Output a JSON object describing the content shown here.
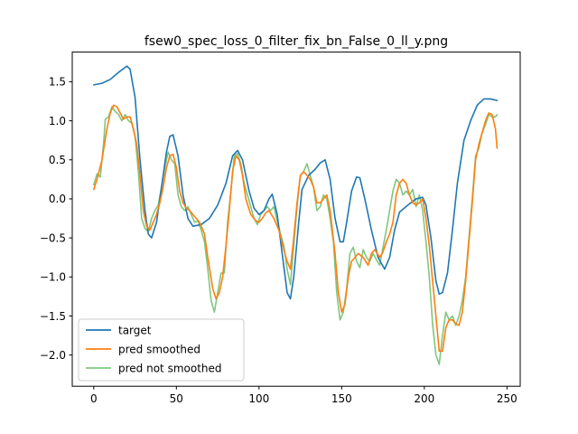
{
  "chart_data": {
    "type": "line",
    "title": "fsew0_spec_loss_0_filter_fix_bn_False_0_ll_y.png",
    "xlabel": "",
    "ylabel": "",
    "xlim": [
      -13,
      258
    ],
    "ylim": [
      -2.4,
      1.88
    ],
    "x_ticks": [
      0,
      50,
      100,
      150,
      200,
      250
    ],
    "y_ticks": [
      -2.0,
      -1.5,
      -1.0,
      -0.5,
      0.0,
      0.5,
      1.0,
      1.5
    ],
    "x_tick_labels": [
      "0",
      "50",
      "100",
      "150",
      "200",
      "250"
    ],
    "y_tick_labels": [
      "−2.0",
      "−1.5",
      "−1.0",
      "−0.5",
      "0.0",
      "0.5",
      "1.0",
      "1.5"
    ],
    "grid": false,
    "legend_position": "lower-left",
    "series": [
      {
        "name": "target",
        "color": "#1f77b4",
        "points": [
          [
            0,
            1.46
          ],
          [
            5,
            1.48
          ],
          [
            10,
            1.53
          ],
          [
            15,
            1.62
          ],
          [
            20,
            1.7
          ],
          [
            22,
            1.66
          ],
          [
            25,
            1.3
          ],
          [
            28,
            0.5
          ],
          [
            31,
            -0.15
          ],
          [
            33,
            -0.45
          ],
          [
            35,
            -0.5
          ],
          [
            38,
            -0.3
          ],
          [
            41,
            0.15
          ],
          [
            44,
            0.6
          ],
          [
            46,
            0.8
          ],
          [
            48,
            0.82
          ],
          [
            51,
            0.55
          ],
          [
            54,
            0.05
          ],
          [
            57,
            -0.25
          ],
          [
            60,
            -0.35
          ],
          [
            65,
            -0.33
          ],
          [
            70,
            -0.25
          ],
          [
            75,
            -0.08
          ],
          [
            80,
            0.2
          ],
          [
            84,
            0.55
          ],
          [
            87,
            0.62
          ],
          [
            90,
            0.5
          ],
          [
            94,
            0.1
          ],
          [
            97,
            -0.12
          ],
          [
            100,
            -0.2
          ],
          [
            103,
            -0.15
          ],
          [
            106,
            0.0
          ],
          [
            108,
            0.06
          ],
          [
            111,
            -0.2
          ],
          [
            114,
            -0.7
          ],
          [
            117,
            -1.2
          ],
          [
            119,
            -1.28
          ],
          [
            121,
            -1.0
          ],
          [
            124,
            -0.3
          ],
          [
            126,
            0.12
          ],
          [
            130,
            0.3
          ],
          [
            134,
            0.38
          ],
          [
            137,
            0.46
          ],
          [
            140,
            0.5
          ],
          [
            143,
            0.25
          ],
          [
            146,
            -0.25
          ],
          [
            149,
            -0.55
          ],
          [
            151,
            -0.55
          ],
          [
            153,
            -0.3
          ],
          [
            156,
            0.1
          ],
          [
            159,
            0.28
          ],
          [
            161,
            0.27
          ],
          [
            164,
            0.0
          ],
          [
            168,
            -0.4
          ],
          [
            172,
            -0.75
          ],
          [
            176,
            -0.9
          ],
          [
            179,
            -0.75
          ],
          [
            182,
            -0.4
          ],
          [
            185,
            -0.17
          ],
          [
            190,
            -0.08
          ],
          [
            195,
            0.0
          ],
          [
            199,
            0.02
          ],
          [
            201,
            -0.08
          ],
          [
            204,
            -0.5
          ],
          [
            207,
            -1.05
          ],
          [
            209,
            -1.22
          ],
          [
            211,
            -1.2
          ],
          [
            214,
            -0.95
          ],
          [
            217,
            -0.4
          ],
          [
            220,
            0.2
          ],
          [
            224,
            0.75
          ],
          [
            228,
            1.0
          ],
          [
            232,
            1.2
          ],
          [
            236,
            1.28
          ],
          [
            240,
            1.28
          ],
          [
            244,
            1.26
          ]
        ]
      },
      {
        "name": "pred smoothed",
        "color": "#ff7f0e",
        "points": [
          [
            0,
            0.12
          ],
          [
            2,
            0.25
          ],
          [
            5,
            0.5
          ],
          [
            8,
            0.9
          ],
          [
            10,
            1.1
          ],
          [
            12,
            1.2
          ],
          [
            14,
            1.18
          ],
          [
            16,
            1.1
          ],
          [
            18,
            1.02
          ],
          [
            20,
            1.05
          ],
          [
            22,
            1.05
          ],
          [
            24,
            0.9
          ],
          [
            26,
            0.7
          ],
          [
            28,
            0.3
          ],
          [
            30,
            -0.15
          ],
          [
            32,
            -0.35
          ],
          [
            34,
            -0.4
          ],
          [
            36,
            -0.3
          ],
          [
            38,
            -0.2
          ],
          [
            40,
            -0.05
          ],
          [
            42,
            0.15
          ],
          [
            44,
            0.4
          ],
          [
            46,
            0.55
          ],
          [
            48,
            0.57
          ],
          [
            50,
            0.4
          ],
          [
            52,
            0.1
          ],
          [
            54,
            -0.05
          ],
          [
            56,
            -0.12
          ],
          [
            58,
            -0.15
          ],
          [
            60,
            -0.2
          ],
          [
            62,
            -0.25
          ],
          [
            64,
            -0.3
          ],
          [
            67,
            -0.45
          ],
          [
            69,
            -0.75
          ],
          [
            72,
            -1.15
          ],
          [
            74,
            -1.28
          ],
          [
            76,
            -1.2
          ],
          [
            78,
            -1.0
          ],
          [
            80,
            -0.6
          ],
          [
            82,
            -0.15
          ],
          [
            84,
            0.35
          ],
          [
            86,
            0.55
          ],
          [
            88,
            0.5
          ],
          [
            90,
            0.3
          ],
          [
            92,
            0.0
          ],
          [
            95,
            -0.2
          ],
          [
            98,
            -0.28
          ],
          [
            100,
            -0.3
          ],
          [
            102,
            -0.25
          ],
          [
            104,
            -0.18
          ],
          [
            106,
            -0.15
          ],
          [
            109,
            -0.25
          ],
          [
            112,
            -0.4
          ],
          [
            115,
            -0.65
          ],
          [
            117,
            -0.8
          ],
          [
            119,
            -0.9
          ],
          [
            121,
            -0.5
          ],
          [
            123,
            -0.05
          ],
          [
            125,
            0.3
          ],
          [
            127,
            0.35
          ],
          [
            129,
            0.3
          ],
          [
            131,
            0.25
          ],
          [
            133,
            0.15
          ],
          [
            135,
            -0.05
          ],
          [
            137,
            -0.05
          ],
          [
            139,
            0.0
          ],
          [
            141,
            0.05
          ],
          [
            143,
            -0.15
          ],
          [
            146,
            -0.7
          ],
          [
            148,
            -1.2
          ],
          [
            150,
            -1.45
          ],
          [
            152,
            -1.35
          ],
          [
            154,
            -1.0
          ],
          [
            156,
            -0.8
          ],
          [
            158,
            -0.75
          ],
          [
            160,
            -0.7
          ],
          [
            163,
            -0.75
          ],
          [
            166,
            -0.85
          ],
          [
            168,
            -0.7
          ],
          [
            170,
            -0.65
          ],
          [
            173,
            -0.75
          ],
          [
            175,
            -0.68
          ],
          [
            177,
            -0.55
          ],
          [
            179,
            -0.45
          ],
          [
            181,
            -0.3
          ],
          [
            183,
            0.05
          ],
          [
            185,
            0.2
          ],
          [
            187,
            0.25
          ],
          [
            189,
            0.2
          ],
          [
            191,
            0.05
          ],
          [
            193,
            -0.05
          ],
          [
            195,
            -0.08
          ],
          [
            197,
            -0.05
          ],
          [
            199,
            0.0
          ],
          [
            201,
            -0.25
          ],
          [
            203,
            -0.6
          ],
          [
            205,
            -1.05
          ],
          [
            207,
            -1.5
          ],
          [
            209,
            -1.95
          ],
          [
            211,
            -1.95
          ],
          [
            213,
            -1.65
          ],
          [
            215,
            -1.55
          ],
          [
            217,
            -1.55
          ],
          [
            219,
            -1.6
          ],
          [
            221,
            -1.62
          ],
          [
            223,
            -1.45
          ],
          [
            225,
            -1.05
          ],
          [
            227,
            -0.55
          ],
          [
            229,
            -0.05
          ],
          [
            231,
            0.5
          ],
          [
            233,
            0.7
          ],
          [
            235,
            0.85
          ],
          [
            237,
            1.0
          ],
          [
            239,
            1.1
          ],
          [
            241,
            1.08
          ],
          [
            243,
            0.9
          ],
          [
            244,
            0.65
          ]
        ]
      },
      {
        "name": "pred not smoothed",
        "color": "#2ca02c",
        "opacity": 0.6,
        "points": [
          [
            0,
            0.18
          ],
          [
            2,
            0.32
          ],
          [
            4,
            0.28
          ],
          [
            6,
            0.72
          ],
          [
            7,
            1.02
          ],
          [
            9,
            1.05
          ],
          [
            11,
            1.18
          ],
          [
            13,
            1.12
          ],
          [
            15,
            1.08
          ],
          [
            17,
            1.0
          ],
          [
            19,
            1.08
          ],
          [
            21,
            1.0
          ],
          [
            23,
            0.97
          ],
          [
            25,
            0.8
          ],
          [
            27,
            0.35
          ],
          [
            29,
            -0.25
          ],
          [
            31,
            -0.38
          ],
          [
            33,
            -0.42
          ],
          [
            35,
            -0.25
          ],
          [
            37,
            -0.15
          ],
          [
            39,
            -0.08
          ],
          [
            41,
            0.15
          ],
          [
            43,
            0.4
          ],
          [
            45,
            0.6
          ],
          [
            47,
            0.5
          ],
          [
            49,
            0.45
          ],
          [
            51,
            0.05
          ],
          [
            53,
            -0.1
          ],
          [
            55,
            -0.15
          ],
          [
            57,
            -0.1
          ],
          [
            59,
            -0.2
          ],
          [
            61,
            -0.3
          ],
          [
            63,
            -0.28
          ],
          [
            65,
            -0.4
          ],
          [
            67,
            -0.55
          ],
          [
            69,
            -0.9
          ],
          [
            71,
            -1.3
          ],
          [
            73,
            -1.45
          ],
          [
            75,
            -1.2
          ],
          [
            77,
            -0.95
          ],
          [
            79,
            -0.95
          ],
          [
            81,
            -0.3
          ],
          [
            83,
            0.1
          ],
          [
            85,
            0.55
          ],
          [
            87,
            0.58
          ],
          [
            89,
            0.45
          ],
          [
            91,
            0.2
          ],
          [
            93,
            0.05
          ],
          [
            95,
            -0.1
          ],
          [
            97,
            -0.25
          ],
          [
            99,
            -0.33
          ],
          [
            101,
            -0.2
          ],
          [
            103,
            -0.15
          ],
          [
            105,
            -0.1
          ],
          [
            107,
            -0.15
          ],
          [
            109,
            -0.1
          ],
          [
            111,
            -0.28
          ],
          [
            113,
            -0.45
          ],
          [
            115,
            -0.6
          ],
          [
            117,
            -0.9
          ],
          [
            119,
            -1.1
          ],
          [
            121,
            -0.6
          ],
          [
            123,
            -0.1
          ],
          [
            125,
            0.3
          ],
          [
            127,
            0.35
          ],
          [
            129,
            0.45
          ],
          [
            131,
            0.3
          ],
          [
            133,
            0.15
          ],
          [
            135,
            -0.15
          ],
          [
            137,
            -0.1
          ],
          [
            139,
            0.05
          ],
          [
            141,
            0.0
          ],
          [
            143,
            -0.25
          ],
          [
            145,
            -0.55
          ],
          [
            147,
            -1.2
          ],
          [
            149,
            -1.55
          ],
          [
            151,
            -1.45
          ],
          [
            153,
            -1.15
          ],
          [
            155,
            -0.7
          ],
          [
            157,
            -0.62
          ],
          [
            159,
            -0.8
          ],
          [
            161,
            -0.88
          ],
          [
            163,
            -0.65
          ],
          [
            165,
            -0.75
          ],
          [
            167,
            -0.8
          ],
          [
            169,
            -0.7
          ],
          [
            171,
            -0.78
          ],
          [
            173,
            -0.85
          ],
          [
            175,
            -0.62
          ],
          [
            177,
            -0.4
          ],
          [
            179,
            -0.15
          ],
          [
            181,
            0.1
          ],
          [
            183,
            0.25
          ],
          [
            185,
            0.2
          ],
          [
            187,
            0.05
          ],
          [
            189,
            0.1
          ],
          [
            191,
            0.05
          ],
          [
            193,
            0.12
          ],
          [
            195,
            -0.1
          ],
          [
            197,
            0.05
          ],
          [
            199,
            -0.15
          ],
          [
            201,
            -0.55
          ],
          [
            203,
            -1.0
          ],
          [
            205,
            -1.6
          ],
          [
            207,
            -2.0
          ],
          [
            209,
            -2.12
          ],
          [
            211,
            -1.75
          ],
          [
            213,
            -1.45
          ],
          [
            215,
            -1.55
          ],
          [
            217,
            -1.5
          ],
          [
            219,
            -1.62
          ],
          [
            221,
            -1.5
          ],
          [
            223,
            -1.3
          ],
          [
            225,
            -1.0
          ],
          [
            227,
            -0.5
          ],
          [
            229,
            0.0
          ],
          [
            231,
            0.55
          ],
          [
            233,
            0.65
          ],
          [
            235,
            0.85
          ],
          [
            237,
            0.95
          ],
          [
            239,
            1.08
          ],
          [
            241,
            1.05
          ],
          [
            243,
            1.05
          ],
          [
            244,
            1.08
          ]
        ]
      }
    ]
  }
}
